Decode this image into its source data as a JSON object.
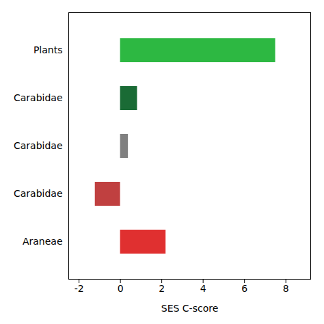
{
  "chart_data": {
    "type": "bar",
    "orientation": "horizontal",
    "categories": [
      "Plants",
      "Carabidae",
      "Carabidae",
      "Carabidae",
      "Araneae"
    ],
    "values": [
      7.5,
      0.82,
      0.38,
      -1.22,
      2.2
    ],
    "colors": [
      "#2db842",
      "#1a6b35",
      "#808080",
      "#c04040",
      "#e03030"
    ],
    "xlabel": "SES C-score",
    "xlim": [
      -2.5,
      9.2
    ],
    "xticks": [
      -2,
      0,
      2,
      4,
      6,
      8
    ]
  }
}
